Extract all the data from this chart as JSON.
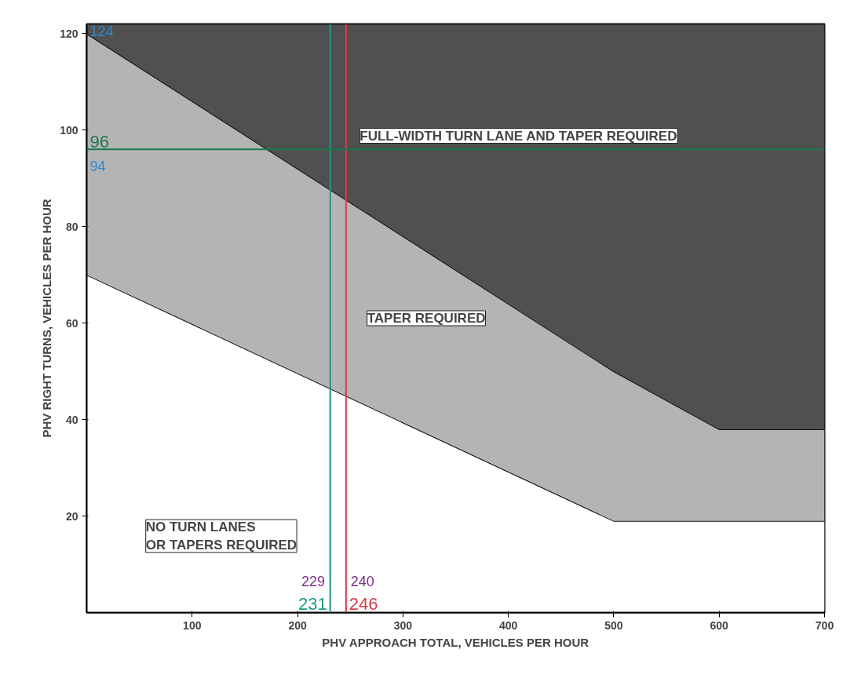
{
  "chart_data": {
    "type": "area",
    "stacked": true,
    "xlabel": "PHV APPROACH TOTAL, VEHICLES PER HOUR",
    "ylabel": "PHV RIGHT TURNS, VEHICLES PER HOUR",
    "x": [
      0,
      500,
      600,
      700
    ],
    "series": [
      {
        "color": "#ffffff",
        "values": [
          70,
          19,
          19,
          19
        ]
      },
      {
        "color": "#b4b4b4",
        "values": [
          50,
          31,
          19,
          19
        ]
      },
      {
        "color": "#505050",
        "values": [
          2,
          72,
          84,
          84
        ]
      }
    ],
    "xlim": [
      0,
      700
    ],
    "xticks": [
      100,
      200,
      300,
      400,
      500,
      600,
      700
    ],
    "ylim": [
      0,
      122
    ],
    "yticks": [
      20,
      40,
      60,
      80,
      100,
      120
    ],
    "grid": false,
    "ref_lines": [
      {
        "axis": "x",
        "value": 231,
        "label": "231",
        "color": "#1a9a8a"
      },
      {
        "axis": "x",
        "value": 246,
        "label": "246",
        "color": "#e03848"
      },
      {
        "axis": "y",
        "value": 96,
        "label": "96",
        "color": "#1a7a4a"
      }
    ],
    "annotations": [
      "FULL-WIDTH TURN LANE AND TAPER REQUIRED",
      "TAPER REQUIRED",
      "NO TURN LANES\nOR TAPERS REQUIRED",
      {
        "text": "229",
        "x": 229,
        "y": 0
      },
      {
        "text": "240",
        "x": 240,
        "y": 0
      },
      {
        "text": "94",
        "x": 0,
        "y": 94
      },
      {
        "text": "124",
        "x": 0,
        "y": 122
      }
    ]
  }
}
